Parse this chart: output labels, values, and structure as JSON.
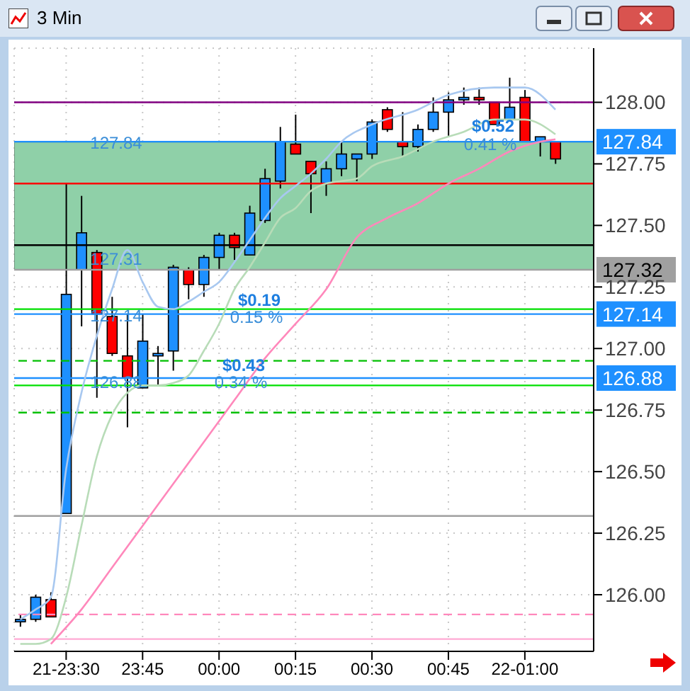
{
  "chart_data": {
    "type": "candlestick",
    "title": "3 Min",
    "categories": [
      null,
      null,
      null,
      "21-23:30",
      null,
      null,
      null,
      null,
      "23:45",
      null,
      null,
      null,
      null,
      "00:00",
      null,
      null,
      null,
      null,
      "00:15",
      null,
      null,
      null,
      null,
      "00:30",
      null,
      null,
      null,
      null,
      "00:45",
      null,
      null,
      null,
      null,
      "22-01:00",
      null,
      null
    ],
    "ohlc": [
      [
        125.89,
        125.92,
        125.87,
        125.9
      ],
      [
        125.9,
        126.0,
        125.89,
        125.99
      ],
      [
        125.98,
        126.01,
        125.91,
        125.91
      ],
      [
        126.33,
        127.67,
        126.33,
        127.22
      ],
      [
        127.32,
        127.62,
        127.09,
        127.47
      ],
      [
        127.39,
        127.4,
        126.8,
        127.14
      ],
      [
        127.13,
        127.21,
        126.97,
        126.98
      ],
      [
        126.97,
        127.14,
        126.68,
        126.88
      ],
      [
        126.84,
        127.14,
        126.84,
        127.03
      ],
      [
        126.97,
        127.01,
        126.85,
        126.98
      ],
      [
        126.99,
        127.34,
        126.91,
        127.33
      ],
      [
        127.32,
        127.33,
        127.2,
        127.26
      ],
      [
        127.26,
        127.38,
        127.21,
        127.37
      ],
      [
        127.37,
        127.47,
        127.32,
        127.46
      ],
      [
        127.46,
        127.47,
        127.36,
        127.41
      ],
      [
        127.38,
        127.58,
        127.38,
        127.55
      ],
      [
        127.52,
        127.73,
        127.51,
        127.69
      ],
      [
        127.68,
        127.9,
        127.65,
        127.84
      ],
      [
        127.83,
        127.95,
        127.79,
        127.79
      ],
      [
        127.76,
        127.76,
        127.55,
        127.71
      ],
      [
        127.67,
        127.76,
        127.62,
        127.73
      ],
      [
        127.73,
        127.84,
        127.7,
        127.79
      ],
      [
        127.77,
        127.79,
        127.68,
        127.79
      ],
      [
        127.79,
        127.93,
        127.77,
        127.92
      ],
      [
        127.97,
        127.98,
        127.88,
        127.89
      ],
      [
        127.84,
        127.96,
        127.78,
        127.82
      ],
      [
        127.82,
        127.91,
        127.8,
        127.89
      ],
      [
        127.89,
        128.02,
        127.88,
        127.96
      ],
      [
        127.96,
        128.04,
        127.86,
        128.01
      ],
      [
        128.01,
        128.06,
        127.99,
        128.02
      ],
      [
        128.02,
        128.06,
        127.99,
        128.01
      ],
      [
        128.0,
        128.0,
        127.91,
        127.91
      ],
      [
        127.93,
        128.1,
        127.93,
        127.98
      ],
      [
        128.02,
        128.05,
        127.84,
        127.84
      ],
      [
        127.84,
        127.86,
        127.78,
        127.86
      ],
      [
        127.84,
        127.84,
        127.75,
        127.77
      ]
    ],
    "series": [
      {
        "type": "line",
        "color": "#a8c8f0",
        "values": [
          125.9,
          125.94,
          125.99,
          126.51,
          126.82,
          127.05,
          127.24,
          127.4,
          127.27,
          127.17,
          127.16,
          127.19,
          127.23,
          127.27,
          127.35,
          127.44,
          127.53,
          127.61,
          127.66,
          127.71,
          127.77,
          127.84,
          null,
          127.91,
          null,
          null,
          127.97,
          null,
          128.03,
          null,
          null,
          128.06,
          null,
          128.06,
          null,
          127.97
        ]
      },
      {
        "type": "line",
        "color": "#b8dcb8",
        "values": [
          125.8,
          125.8,
          125.82,
          125.99,
          126.28,
          126.56,
          126.73,
          126.82,
          126.85,
          126.85,
          126.86,
          126.89,
          126.99,
          127.1,
          127.24,
          127.33,
          127.43,
          127.53,
          127.57,
          127.64,
          127.67,
          127.68,
          127.69,
          127.74,
          null,
          127.78,
          null,
          127.84,
          null,
          127.88,
          null,
          127.93,
          null,
          127.93,
          null,
          127.87
        ]
      },
      {
        "type": "line",
        "color": "#ff88bb",
        "values": [
          null,
          null,
          125.8,
          null,
          125.94,
          null,
          126.11,
          null,
          126.28,
          null,
          126.45,
          null,
          126.62,
          null,
          126.79,
          null,
          126.96,
          null,
          127.1,
          null,
          127.24,
          null,
          127.45,
          null,
          127.53,
          null,
          127.59,
          null,
          127.67,
          null,
          127.73,
          null,
          127.8,
          null,
          127.84,
          127.85
        ]
      }
    ],
    "ylim": [
      125.77,
      128.22
    ],
    "yticks": [
      {
        "value": 126,
        "label": "126.00"
      },
      {
        "value": 126.25,
        "label": "126.25"
      },
      {
        "value": 126.5,
        "label": "126.50"
      },
      {
        "value": 126.75,
        "label": "126.75"
      },
      {
        "value": 127,
        "label": "127.00"
      },
      {
        "value": 127.25,
        "label": "127.25"
      },
      {
        "value": 127.5,
        "label": "127.50"
      },
      {
        "value": 127.75,
        "label": "127.75"
      },
      {
        "value": 128,
        "label": "128.00"
      }
    ],
    "grid": true,
    "bands": [
      {
        "axis": "y",
        "from": 127.32,
        "to": 127.84,
        "color": "#8fd0a8"
      }
    ],
    "ref_lines": [
      {
        "axis": "y",
        "value": 128.0,
        "color": "#800080"
      },
      {
        "axis": "y",
        "value": 127.84,
        "label": "127.84",
        "color": "#1e90ff"
      },
      {
        "axis": "y",
        "value": 127.67,
        "color": "#ff0000"
      },
      {
        "axis": "y",
        "value": 127.42,
        "color": "#000000"
      },
      {
        "axis": "y",
        "value": 127.32,
        "label": "127.32",
        "color": "#a0a0a0"
      },
      {
        "axis": "y",
        "value": 127.16,
        "color": "#00e000"
      },
      {
        "axis": "y",
        "value": 127.14,
        "label": "127.14",
        "color": "#1e90ff"
      },
      {
        "axis": "y",
        "value": 126.95,
        "color": "#00c000",
        "line_style": "dashed"
      },
      {
        "axis": "y",
        "value": 126.88,
        "label": "126.88",
        "color": "#1e90ff"
      },
      {
        "axis": "y",
        "value": 126.85,
        "color": "#00e000"
      },
      {
        "axis": "y",
        "value": 126.74,
        "color": "#00c000",
        "line_style": "dashed"
      },
      {
        "axis": "y",
        "value": 126.32,
        "color": "#a0a0a0"
      },
      {
        "axis": "y",
        "value": 125.92,
        "color": "#ff88bb",
        "line_style": "dashed"
      },
      {
        "axis": "y",
        "value": 125.82,
        "color": "#ffaad4"
      }
    ],
    "annotations": [
      "127.84",
      "127.31",
      "127.14",
      "126.88",
      "$0.19",
      "0.15 %",
      "$0.43",
      "0.34 %",
      "$0.52",
      "0.41 %"
    ]
  }
}
